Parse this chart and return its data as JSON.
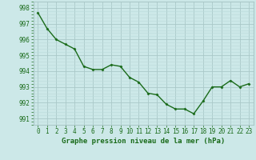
{
  "x": [
    0,
    1,
    2,
    3,
    4,
    5,
    6,
    7,
    8,
    9,
    10,
    11,
    12,
    13,
    14,
    15,
    16,
    17,
    18,
    19,
    20,
    21,
    22,
    23
  ],
  "y": [
    997.7,
    996.7,
    996.0,
    995.7,
    995.4,
    994.3,
    994.1,
    994.1,
    994.4,
    994.3,
    993.6,
    993.3,
    992.6,
    992.5,
    991.9,
    991.6,
    991.6,
    991.3,
    992.1,
    993.0,
    993.0,
    993.4,
    993.0,
    993.2
  ],
  "line_color": "#1a6b1a",
  "marker": "D",
  "marker_size": 1.5,
  "bg_color": "#cce8e8",
  "grid_major_color": "#aac8c8",
  "grid_minor_color": "#bbdada",
  "xlabel": "Graphe pression niveau de la mer (hPa)",
  "xlabel_fontsize": 6.5,
  "ylabel_ticks": [
    991,
    992,
    993,
    994,
    995,
    996,
    997,
    998
  ],
  "xtick_labels": [
    "0",
    "1",
    "2",
    "3",
    "4",
    "5",
    "6",
    "7",
    "8",
    "9",
    "10",
    "11",
    "12",
    "13",
    "14",
    "15",
    "16",
    "17",
    "18",
    "19",
    "20",
    "21",
    "22",
    "23"
  ],
  "ylim": [
    990.6,
    998.4
  ],
  "xlim": [
    -0.5,
    23.5
  ],
  "tick_fontsize": 5.5,
  "line_width": 1.0
}
